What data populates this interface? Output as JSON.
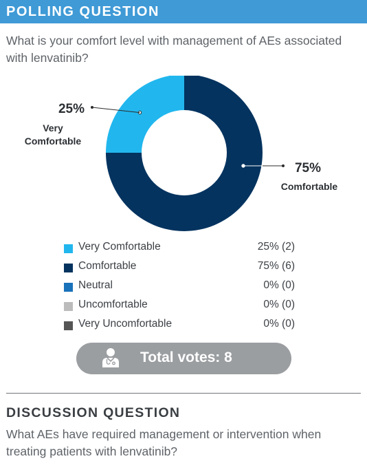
{
  "polling": {
    "header": "POLLING QUESTION",
    "question": "What is your comfort level with management of AEs associated with lenvatinib?"
  },
  "chart_data": {
    "type": "pie",
    "donut": true,
    "categories": [
      "Very Comfortable",
      "Comfortable",
      "Neutral",
      "Uncomfortable",
      "Very Uncomfortable"
    ],
    "values": [
      25,
      75,
      0,
      0,
      0
    ],
    "votes": [
      2,
      6,
      0,
      0,
      0
    ],
    "colors": [
      "#21b7ee",
      "#04335f",
      "#1a72ba",
      "#bcbcbc",
      "#555555"
    ],
    "callouts": [
      {
        "value": "25%",
        "label_lines": [
          "Very",
          "Comfortable"
        ]
      },
      {
        "value": "75%",
        "label_lines": [
          "Comfortable"
        ]
      }
    ]
  },
  "legend": [
    {
      "label": "Very Comfortable",
      "value": "25% (2)",
      "color": "#21b7ee"
    },
    {
      "label": "Comfortable",
      "value": "75% (6)",
      "color": "#04335f"
    },
    {
      "label": "Neutral",
      "value": "0% (0)",
      "color": "#1a72ba"
    },
    {
      "label": "Uncomfortable",
      "value": "0% (0)",
      "color": "#bcbcbc"
    },
    {
      "label": "Very Uncomfortable",
      "value": "0% (0)",
      "color": "#555555"
    }
  ],
  "total": {
    "label": "Total votes: ",
    "count": "8",
    "icon": "doctor-icon"
  },
  "discussion": {
    "header": "DISCUSSION QUESTION",
    "question": "What AEs have required management or intervention when treating patients with lenvatinib?"
  }
}
